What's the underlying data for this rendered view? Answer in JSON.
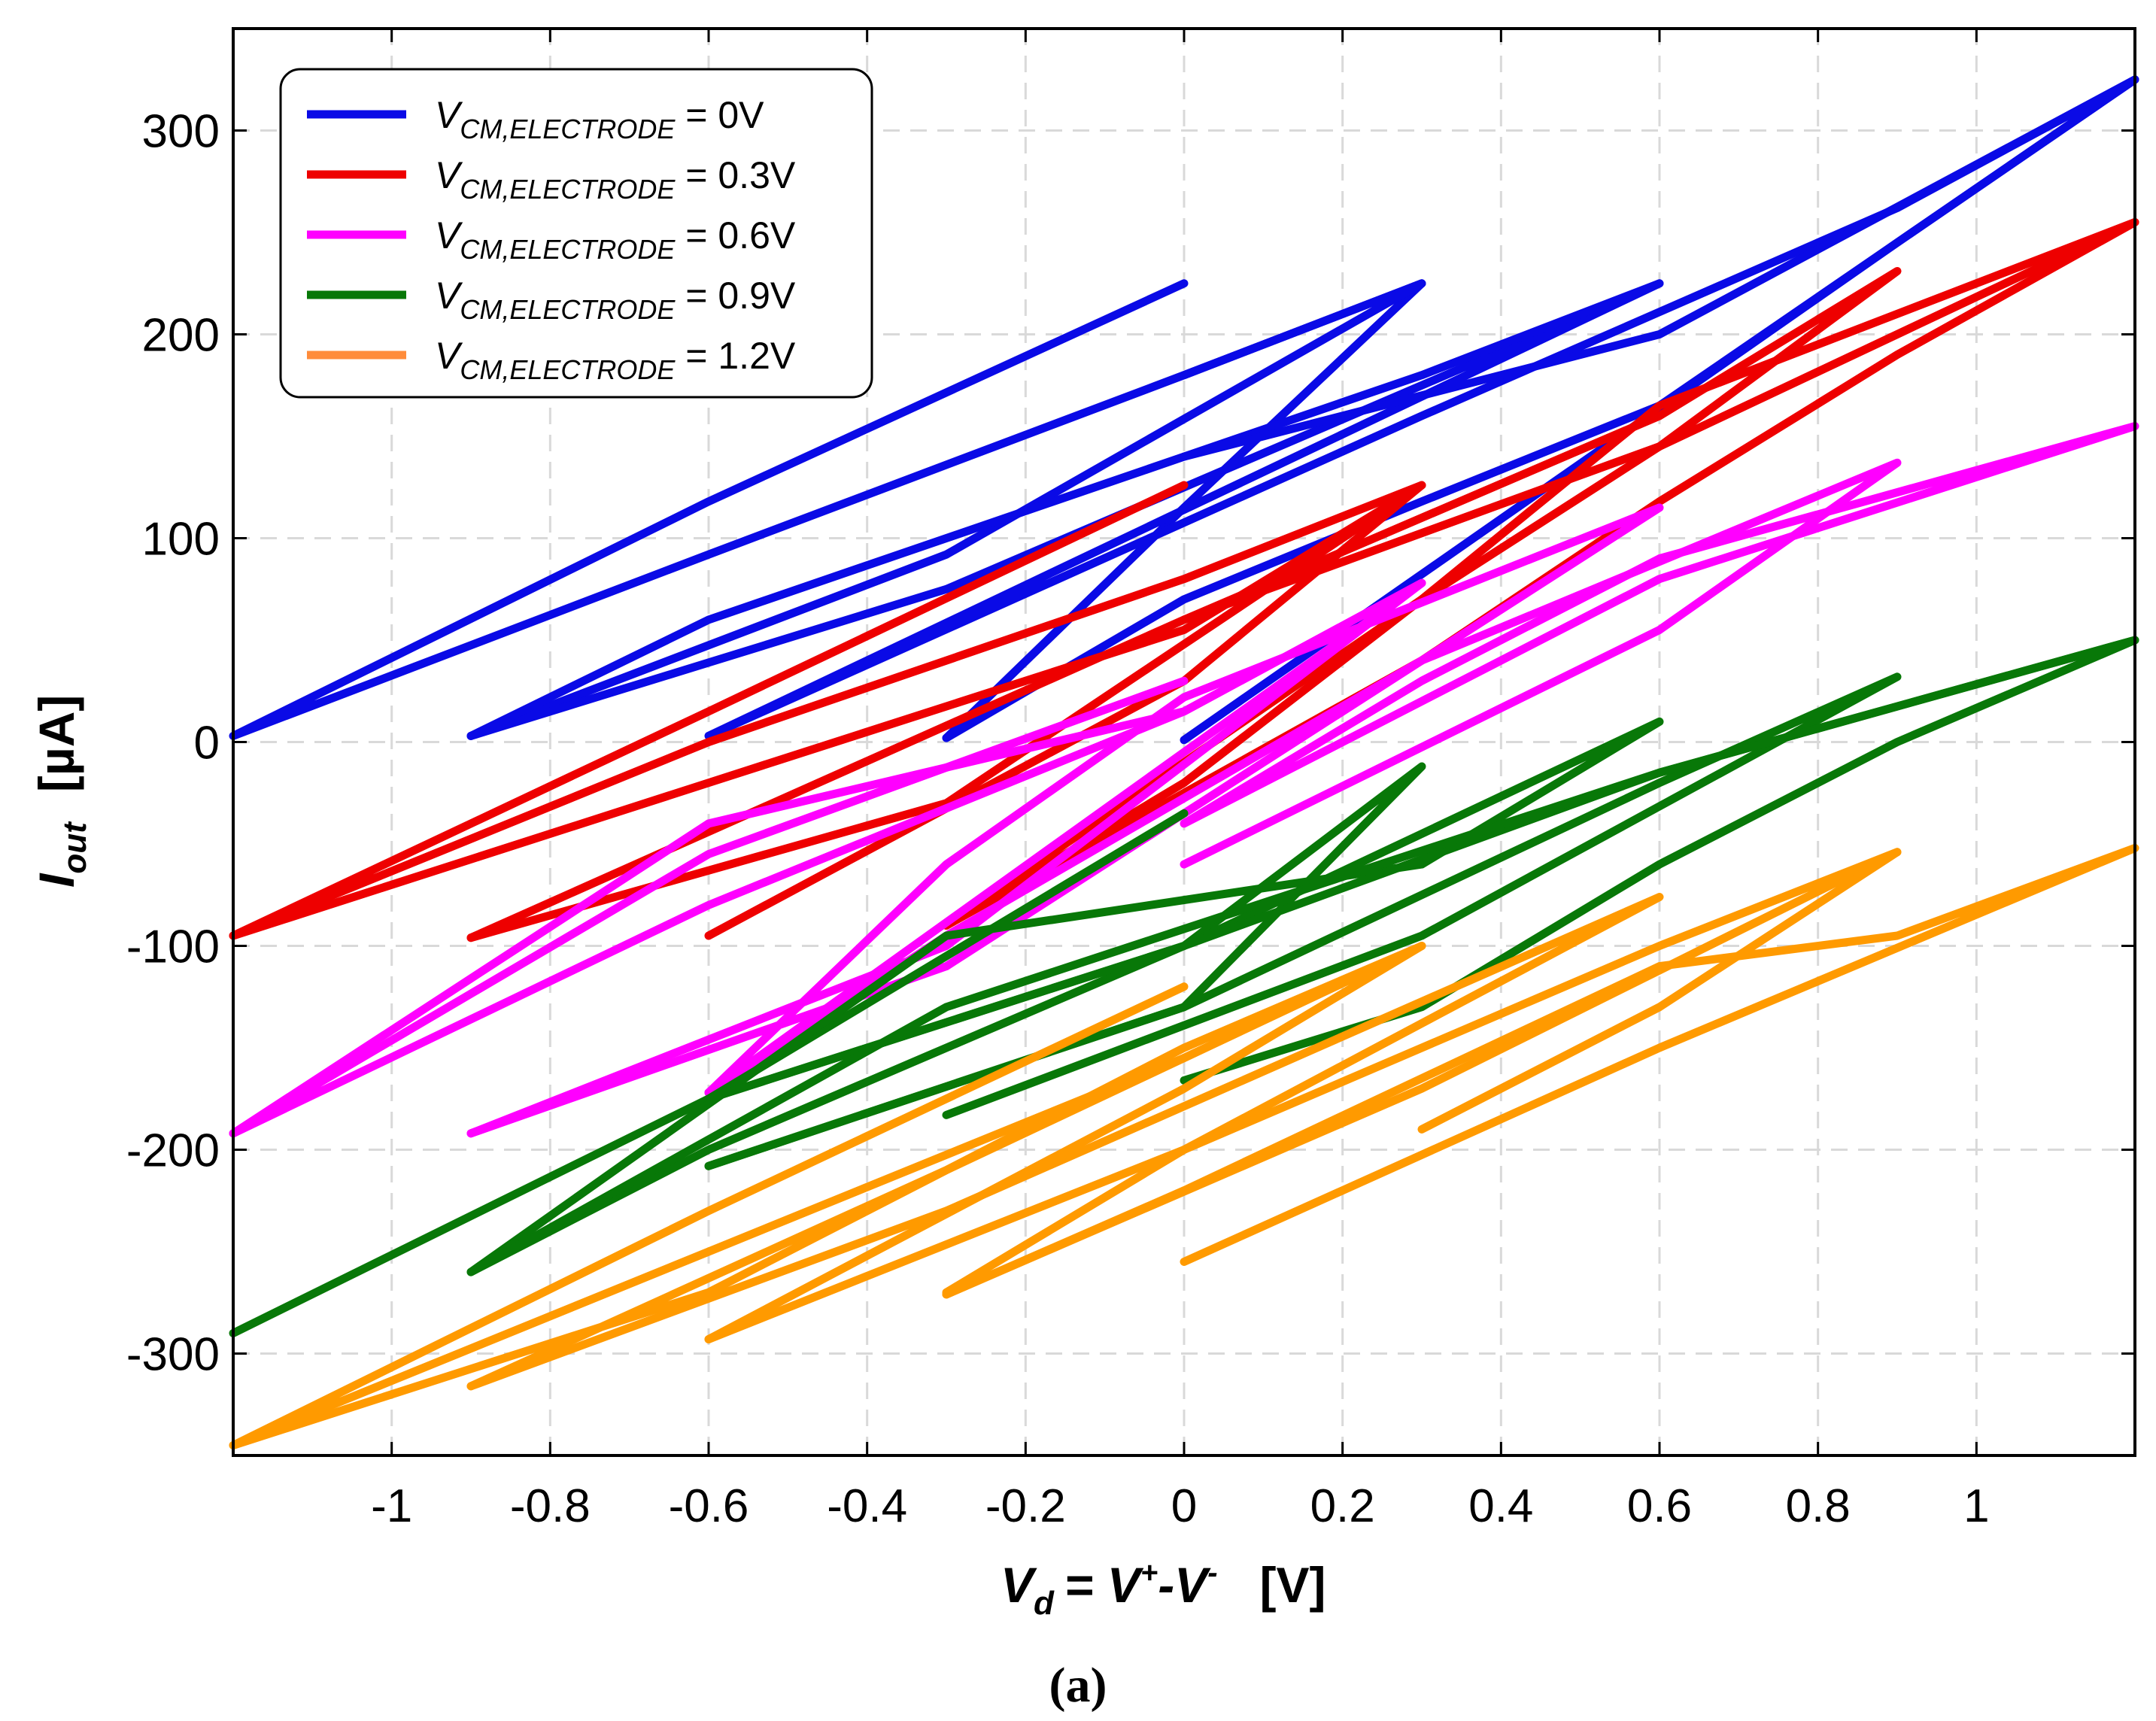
{
  "chart_data": {
    "type": "line",
    "title": "",
    "caption": "(a)",
    "xlabel": {
      "main": "V",
      "sub": "d",
      "rest": "= V",
      "sup1": "+",
      "rest2": "-V",
      "sup2": "-",
      "unit": "[V]"
    },
    "ylabel": {
      "main": "I",
      "sub": "out",
      "unit": "[µA]"
    },
    "xlim": [
      -1.2,
      1.2
    ],
    "ylim": [
      -350,
      350
    ],
    "xticks": [
      -1,
      -0.8,
      -0.6,
      -0.4,
      -0.2,
      0,
      0.2,
      0.4,
      0.6,
      0.8,
      1
    ],
    "xtick_labels": [
      "-1",
      "-0.8",
      "-0.6",
      "-0.4",
      "-0.2",
      "0",
      "0.2",
      "0.4",
      "0.6",
      "0.8",
      "1"
    ],
    "yticks": [
      -300,
      -200,
      -100,
      0,
      100,
      200,
      300
    ],
    "ytick_labels": [
      "-300",
      "-200",
      "-100",
      "0",
      "100",
      "200",
      "300"
    ],
    "grid": true,
    "legend_position": "top-left",
    "series": [
      {
        "name": "V_CM,ELECTRODE = 0V",
        "label_main": "V",
        "label_sub": "CM,ELECTRODE",
        "label_value": " = 0V",
        "color": "#0a0ae6",
        "legend_color": "#0a0ae6",
        "segments": [
          [
            [
              0,
              225
            ],
            [
              -0.6,
              118
            ],
            [
              -1.2,
              3
            ],
            [
              -0.6,
              92
            ],
            [
              0,
              180
            ],
            [
              0.3,
              225
            ],
            [
              0,
              115
            ],
            [
              -0.3,
              2
            ]
          ],
          [
            [
              -0.9,
              3
            ],
            [
              -0.3,
              92
            ],
            [
              0.3,
              225
            ],
            [
              0,
              180
            ]
          ],
          [
            [
              -0.9,
              3
            ],
            [
              -0.3,
              75
            ],
            [
              0.6,
              225
            ],
            [
              -0.6,
              3
            ],
            [
              0.3,
              160
            ],
            [
              0.9,
              262
            ],
            [
              1.2,
              325
            ],
            [
              0.9,
              245
            ],
            [
              0,
              1
            ]
          ],
          [
            [
              0.6,
              225
            ],
            [
              0.3,
              180
            ],
            [
              0,
              140
            ],
            [
              -0.6,
              60
            ],
            [
              -0.9,
              3
            ]
          ],
          [
            [
              0,
              140
            ],
            [
              0.6,
              200
            ],
            [
              1.2,
              325
            ],
            [
              0.6,
              165
            ],
            [
              0.3,
              118
            ],
            [
              0,
              70
            ],
            [
              -0.3,
              2
            ]
          ]
        ]
      },
      {
        "name": "V_CM,ELECTRODE = 0.3V",
        "label_main": "V",
        "label_sub": "CM,ELECTRODE",
        "label_value": " = 0.3V",
        "color": "#ee0000",
        "legend_color": "#ee0000",
        "segments": [
          [
            [
              0,
              126
            ],
            [
              -0.6,
              15
            ],
            [
              -1.2,
              -95
            ],
            [
              -0.6,
              0
            ],
            [
              0,
              80
            ],
            [
              0.3,
              126
            ],
            [
              0,
              30
            ],
            [
              -0.6,
              -95
            ]
          ],
          [
            [
              -0.9,
              -96
            ],
            [
              -0.3,
              -30
            ],
            [
              0.3,
              126
            ],
            [
              0,
              55
            ],
            [
              -0.6,
              -20
            ],
            [
              -1.2,
              -95
            ]
          ],
          [
            [
              -0.9,
              -96
            ],
            [
              0,
              60
            ],
            [
              0.6,
              160
            ],
            [
              0.9,
              231
            ],
            [
              0.6,
              145
            ],
            [
              0.3,
              70
            ],
            [
              0,
              -20
            ],
            [
              -0.3,
              -90
            ]
          ],
          [
            [
              -0.3,
              -90
            ],
            [
              0.3,
              70
            ],
            [
              0.6,
              165
            ],
            [
              1.2,
              255
            ],
            [
              0.9,
              190
            ],
            [
              0.6,
              118
            ],
            [
              0.3,
              40
            ],
            [
              -0.3,
              -90
            ]
          ],
          [
            [
              0,
              60
            ],
            [
              0.6,
              145
            ],
            [
              1.2,
              255
            ]
          ]
        ]
      },
      {
        "name": "V_CM,ELECTRODE = 0.6V",
        "label_main": "V",
        "label_sub": "CM,ELECTRODE",
        "label_value": " = 0.6V",
        "color": "#ff00ff",
        "legend_color": "#ff00ff",
        "segments": [
          [
            [
              0,
              30
            ],
            [
              -0.6,
              -55
            ],
            [
              -1.2,
              -192
            ],
            [
              -0.6,
              -80
            ],
            [
              0,
              15
            ],
            [
              0.3,
              78
            ],
            [
              0,
              -5
            ],
            [
              -0.6,
              -172
            ]
          ],
          [
            [
              -0.9,
              -192
            ],
            [
              -0.3,
              -100
            ],
            [
              0.3,
              78
            ],
            [
              0,
              15
            ],
            [
              -0.6,
              -40
            ],
            [
              -1.2,
              -192
            ]
          ],
          [
            [
              -0.9,
              -192
            ],
            [
              -0.3,
              -110
            ],
            [
              0.6,
              115
            ],
            [
              0,
              22
            ],
            [
              -0.3,
              -60
            ],
            [
              -0.6,
              -172
            ]
          ],
          [
            [
              0,
              -60
            ],
            [
              0.6,
              55
            ],
            [
              0.9,
              137
            ],
            [
              0.3,
              40
            ],
            [
              -0.3,
              -95
            ],
            [
              -0.6,
              -172
            ]
          ],
          [
            [
              0,
              -40
            ],
            [
              0.6,
              80
            ],
            [
              1.2,
              155
            ],
            [
              0.6,
              90
            ],
            [
              0.3,
              30
            ],
            [
              0,
              -40
            ]
          ]
        ]
      },
      {
        "name": "V_CM,ELECTRODE = 0.9V",
        "label_main": "V",
        "label_sub": "CM,ELECTRODE",
        "label_value": " = 0.9V",
        "color": "#087808",
        "legend_color": "#087808",
        "segments": [
          [
            [
              0,
              -35
            ],
            [
              -0.6,
              -175
            ],
            [
              -1.2,
              -290
            ],
            [
              -0.6,
              -175
            ],
            [
              0,
              -100
            ],
            [
              0.3,
              -12
            ],
            [
              0,
              -130
            ],
            [
              -0.6,
              -208
            ]
          ],
          [
            [
              -0.9,
              -260
            ],
            [
              -0.3,
              -95
            ],
            [
              0.3,
              -60
            ],
            [
              0.6,
              10
            ],
            [
              0,
              -100
            ],
            [
              -0.6,
              -200
            ],
            [
              -0.9,
              -260
            ]
          ],
          [
            [
              -0.3,
              -183
            ],
            [
              0.3,
              -95
            ],
            [
              0.9,
              32
            ],
            [
              0.6,
              -20
            ],
            [
              0,
              -130
            ],
            [
              -0.6,
              -208
            ]
          ],
          [
            [
              0,
              -166
            ],
            [
              0.3,
              -130
            ],
            [
              0.6,
              -60
            ],
            [
              0.9,
              0
            ],
            [
              1.2,
              50
            ],
            [
              0.6,
              -15
            ],
            [
              0,
              -100
            ],
            [
              -0.6,
              -175
            ]
          ],
          [
            [
              -0.9,
              -260
            ],
            [
              -0.3,
              -130
            ],
            [
              0.6,
              -15
            ],
            [
              1.2,
              50
            ]
          ]
        ]
      },
      {
        "name": "V_CM,ELECTRODE = 1.2V",
        "label_main": "V",
        "label_sub": "CM,ELECTRODE",
        "label_value": " = 1.2V",
        "color": "#ff9a00",
        "legend_color": "#ff8c3a",
        "segments": [
          [
            [
              0,
              -120
            ],
            [
              -0.6,
              -230
            ],
            [
              -1.2,
              -345
            ],
            [
              -0.6,
              -250
            ],
            [
              0,
              -155
            ],
            [
              0.3,
              -100
            ],
            [
              0,
              -170
            ],
            [
              -0.6,
              -293
            ]
          ],
          [
            [
              -0.9,
              -316
            ],
            [
              -0.3,
              -210
            ],
            [
              0.3,
              -100
            ],
            [
              0,
              -150
            ],
            [
              -0.6,
              -270
            ],
            [
              -1.2,
              -345
            ]
          ],
          [
            [
              -0.9,
              -316
            ],
            [
              -0.3,
              -230
            ],
            [
              0.6,
              -76
            ],
            [
              0,
              -200
            ],
            [
              -0.3,
              -270
            ]
          ],
          [
            [
              -0.3,
              -271
            ],
            [
              0.3,
              -170
            ],
            [
              0.9,
              -54
            ],
            [
              0.6,
              -100
            ],
            [
              0,
              -200
            ],
            [
              -0.6,
              -293
            ]
          ],
          [
            [
              0,
              -255
            ],
            [
              0.6,
              -150
            ],
            [
              1.2,
              -52
            ],
            [
              0.9,
              -95
            ],
            [
              0.6,
              -110
            ],
            [
              0,
              -220
            ],
            [
              -0.3,
              -271
            ]
          ],
          [
            [
              0.3,
              -190
            ],
            [
              0.6,
              -130
            ],
            [
              0.9,
              -54
            ]
          ]
        ]
      }
    ]
  }
}
